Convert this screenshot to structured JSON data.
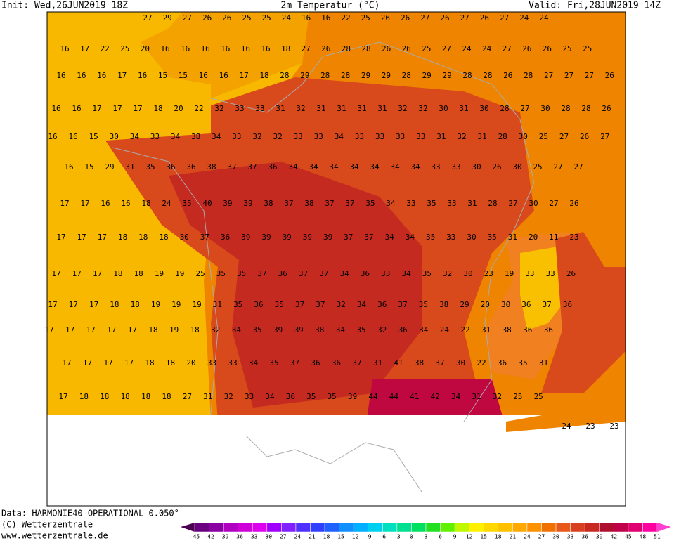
{
  "header": {
    "init": "Init: Wed,26JUN2019 18Z",
    "title": "2m Temperatur (°C)",
    "valid": "Valid: Fri,28JUN2019 14Z"
  },
  "map": {
    "rows": [
      [
        27,
        29,
        27,
        26,
        26,
        25,
        25,
        24,
        16,
        16,
        22,
        25,
        26,
        26,
        27,
        26,
        27,
        26,
        27,
        24,
        24
      ],
      [
        16,
        17,
        22,
        25,
        20,
        16,
        16,
        16,
        16,
        16,
        16,
        18,
        27,
        26,
        28,
        28,
        26,
        26,
        25,
        27,
        24,
        24,
        27,
        26,
        26,
        25,
        25
      ],
      [
        16,
        16,
        16,
        17,
        16,
        15,
        15,
        16,
        16,
        17,
        18,
        28,
        29,
        28,
        28,
        29,
        29,
        28,
        29,
        29,
        28,
        28,
        26,
        28,
        27,
        27,
        27,
        26
      ],
      [
        16,
        16,
        17,
        17,
        17,
        18,
        20,
        22,
        32,
        33,
        33,
        31,
        32,
        31,
        31,
        31,
        31,
        32,
        32,
        30,
        31,
        30,
        28,
        27,
        30,
        28,
        28,
        26
      ],
      [
        16,
        16,
        15,
        30,
        34,
        33,
        34,
        38,
        34,
        33,
        32,
        32,
        33,
        33,
        34,
        33,
        33,
        33,
        33,
        31,
        32,
        31,
        28,
        30,
        25,
        27,
        26,
        27
      ],
      [
        16,
        15,
        29,
        31,
        35,
        36,
        36,
        38,
        37,
        37,
        36,
        34,
        34,
        34,
        34,
        34,
        34,
        34,
        33,
        33,
        30,
        26,
        30,
        25,
        27,
        27
      ],
      [
        17,
        17,
        16,
        16,
        18,
        24,
        35,
        40,
        39,
        39,
        38,
        37,
        38,
        37,
        37,
        35,
        34,
        33,
        35,
        33,
        31,
        28,
        27,
        30,
        27,
        26
      ],
      [
        17,
        17,
        17,
        18,
        18,
        18,
        30,
        37,
        36,
        39,
        39,
        39,
        39,
        39,
        37,
        37,
        34,
        34,
        35,
        33,
        30,
        35,
        31,
        20,
        11,
        23
      ],
      [
        17,
        17,
        17,
        18,
        18,
        19,
        19,
        25,
        35,
        35,
        37,
        36,
        37,
        37,
        34,
        36,
        33,
        34,
        35,
        32,
        30,
        23,
        19,
        33,
        33,
        26
      ],
      [
        17,
        17,
        17,
        18,
        18,
        19,
        19,
        19,
        31,
        35,
        36,
        35,
        37,
        37,
        32,
        34,
        36,
        37,
        35,
        38,
        29,
        20,
        30,
        36,
        37,
        36
      ],
      [
        17,
        17,
        17,
        17,
        17,
        18,
        19,
        18,
        32,
        34,
        35,
        39,
        39,
        38,
        34,
        35,
        32,
        36,
        34,
        24,
        22,
        31,
        38,
        36,
        36
      ],
      [
        17,
        17,
        17,
        17,
        18,
        18,
        20,
        33,
        33,
        34,
        35,
        37,
        36,
        36,
        37,
        31,
        41,
        38,
        37,
        30,
        22,
        36,
        35,
        31
      ],
      [
        17,
        18,
        18,
        18,
        18,
        18,
        27,
        31,
        32,
        33,
        34,
        36,
        35,
        35,
        39,
        44,
        44,
        41,
        42,
        34,
        31,
        32,
        25,
        25
      ],
      [
        24,
        23,
        23
      ]
    ]
  },
  "colorbar": {
    "labels": [
      -45,
      -42,
      -39,
      -36,
      -33,
      -30,
      -27,
      -24,
      -21,
      -18,
      -15,
      -12,
      -9,
      -6,
      -3,
      0,
      3,
      6,
      9,
      12,
      15,
      18,
      21,
      24,
      27,
      30,
      33,
      36,
      39,
      42,
      45,
      48,
      51
    ]
  },
  "footer": {
    "data": "Data: HARMONIE40 OPERATIONAL 0.050°",
    "copyright": "(C) Wetterzentrale",
    "url": "www.wetterzentrale.de"
  }
}
